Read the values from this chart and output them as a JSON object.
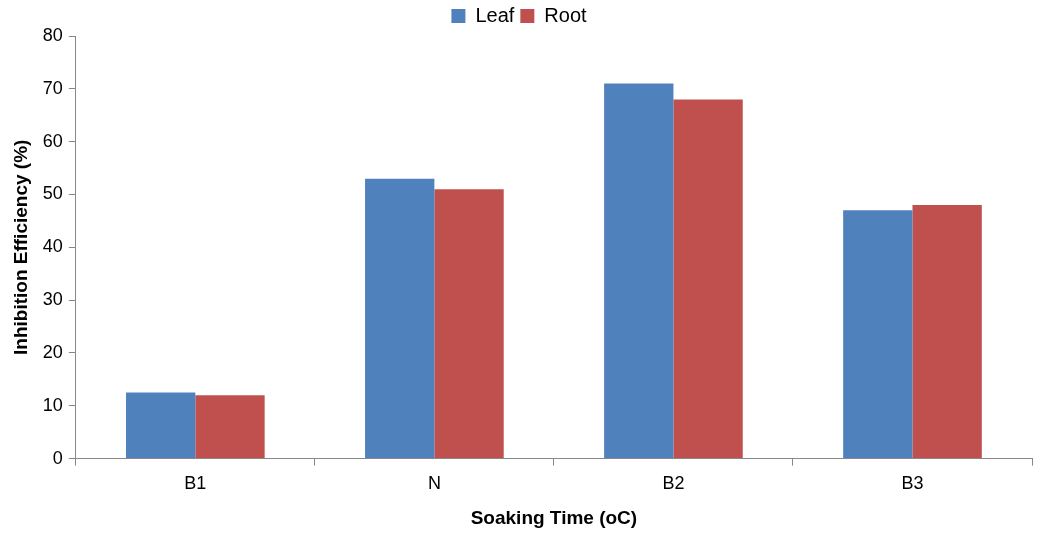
{
  "chart_data": {
    "type": "bar",
    "xlabel": "Soaking Time (oC)",
    "ylabel": "Inhibition Efficiency (%)",
    "categories": [
      "B1",
      "N",
      "B2",
      "B3"
    ],
    "series": [
      {
        "name": "Leaf",
        "color": "#4f81bd",
        "values": [
          12.5,
          53,
          71,
          47
        ]
      },
      {
        "name": "Root",
        "color": "#c0504d",
        "values": [
          12,
          51,
          68,
          48
        ]
      }
    ],
    "ylim": [
      0,
      80
    ],
    "yticks": [
      0,
      10,
      20,
      30,
      40,
      50,
      60,
      70,
      80
    ],
    "grid": false,
    "legend": "top"
  }
}
